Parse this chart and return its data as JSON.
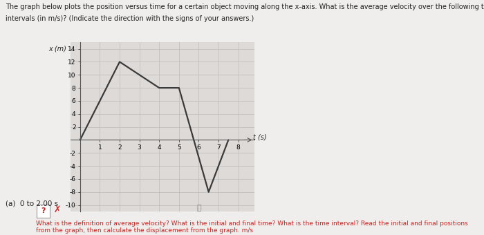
{
  "title_line1": "The graph below plots the position versus time for a certain object moving along the x-axis. What is the average velocity over the following time",
  "title_line2": "intervals (in m/s)? (Indicate the direction with the signs of your answers.)",
  "x_data": [
    0,
    2,
    4,
    5,
    6.5,
    7.5
  ],
  "y_data": [
    0,
    12,
    8,
    8,
    -8,
    0
  ],
  "xlabel": "t (s)",
  "ylabel": "x (m)",
  "xlim": [
    -0.5,
    8.8
  ],
  "ylim": [
    -11,
    15
  ],
  "xticks": [
    1,
    2,
    3,
    4,
    5,
    6,
    7,
    8
  ],
  "yticks": [
    -10,
    -8,
    -6,
    -4,
    -2,
    2,
    4,
    6,
    8,
    10,
    12,
    14
  ],
  "line_color": "#3a3a3a",
  "line_width": 1.6,
  "grid_color": "#bbbbbb",
  "axes_bg": "#dedad8",
  "subtitle_a": "(a)  0 to 2.00 s",
  "answer_box_color": "#cc2222",
  "hint_text": "What is the definition of average velocity? What is the initial and final time? What is the time interval? Read the initial and final positions\nfrom the graph, then calculate the displacement from the graph. m/s",
  "hint_color": "#cc2222",
  "fig_bg": "#f0eeec"
}
